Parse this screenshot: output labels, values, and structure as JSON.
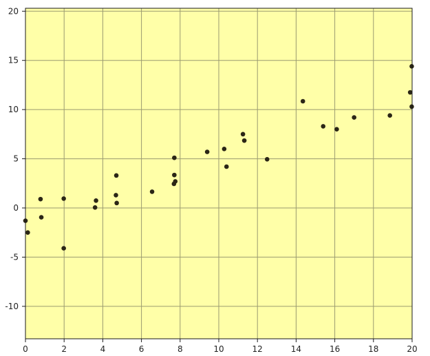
{
  "chart_data": {
    "type": "scatter",
    "title": "",
    "xlabel": "",
    "ylabel": "",
    "xlim": [
      0,
      20
    ],
    "ylim": [
      -13.3,
      20.3
    ],
    "x_ticks": [
      0,
      2,
      4,
      6,
      8,
      10,
      12,
      14,
      16,
      18,
      20
    ],
    "y_ticks": [
      -10,
      -5,
      0,
      5,
      10,
      15,
      20
    ],
    "grid": true,
    "legend": "none",
    "colors": {
      "plot_background": "#ffffa8",
      "grid": "#9a9a70",
      "frame": "#1a1a1a",
      "point": "#2b2616"
    },
    "series": [
      {
        "points": [
          {
            "x": 0.0,
            "y": -1.3
          },
          {
            "x": 0.12,
            "y": -2.5
          },
          {
            "x": 0.78,
            "y": 0.9
          },
          {
            "x": 0.82,
            "y": -0.95
          },
          {
            "x": 1.98,
            "y": 0.95
          },
          {
            "x": 1.98,
            "y": -4.1
          },
          {
            "x": 3.6,
            "y": 0.05
          },
          {
            "x": 3.65,
            "y": 0.75
          },
          {
            "x": 4.7,
            "y": 3.3
          },
          {
            "x": 4.68,
            "y": 1.3
          },
          {
            "x": 4.72,
            "y": 0.5
          },
          {
            "x": 6.55,
            "y": 1.65
          },
          {
            "x": 7.7,
            "y": 5.1
          },
          {
            "x": 7.7,
            "y": 3.35
          },
          {
            "x": 7.75,
            "y": 2.7
          },
          {
            "x": 7.68,
            "y": 2.45
          },
          {
            "x": 9.4,
            "y": 5.7
          },
          {
            "x": 10.28,
            "y": 6.0
          },
          {
            "x": 10.4,
            "y": 4.2
          },
          {
            "x": 11.25,
            "y": 7.5
          },
          {
            "x": 11.32,
            "y": 6.85
          },
          {
            "x": 12.5,
            "y": 4.95
          },
          {
            "x": 14.35,
            "y": 10.85
          },
          {
            "x": 15.4,
            "y": 8.3
          },
          {
            "x": 16.1,
            "y": 8.0
          },
          {
            "x": 17.0,
            "y": 9.2
          },
          {
            "x": 18.85,
            "y": 9.4
          },
          {
            "x": 19.9,
            "y": 11.75
          },
          {
            "x": 19.98,
            "y": 14.4
          },
          {
            "x": 19.98,
            "y": 10.3
          }
        ]
      }
    ]
  }
}
